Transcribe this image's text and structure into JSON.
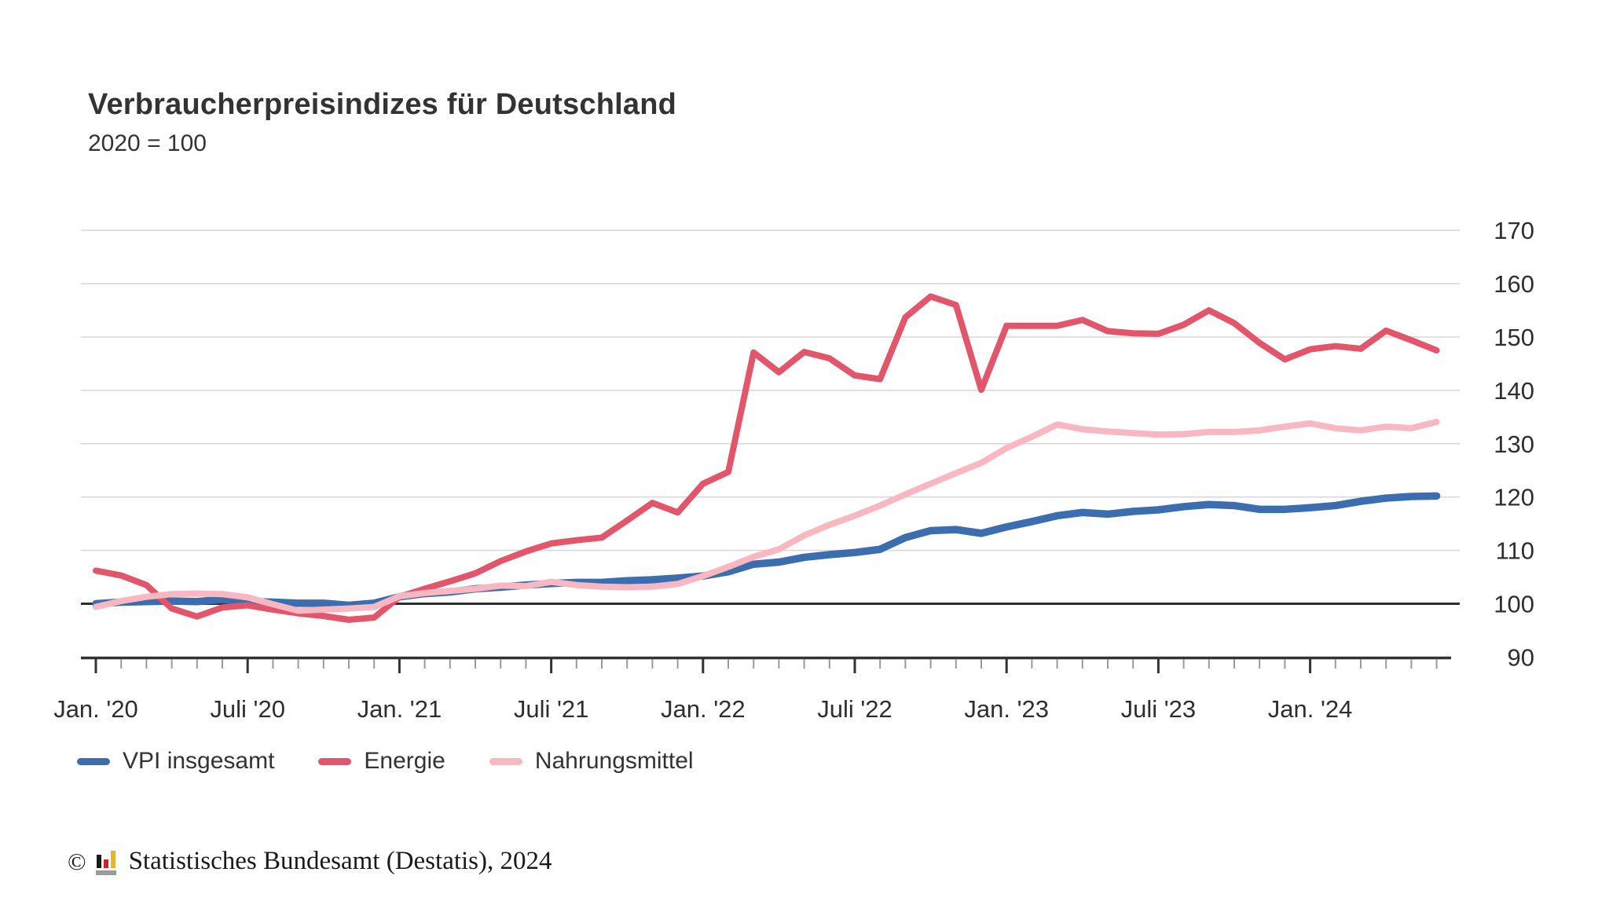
{
  "header": {
    "title": "Verbraucherpreisindizes für Deutschland",
    "subtitle": "2020 = 100"
  },
  "chart_data": {
    "type": "line",
    "title": "Verbraucherpreisindizes für Deutschland",
    "subtitle": "2020 = 100",
    "grid": true,
    "legend_position": "bottom",
    "ylim": [
      90,
      170
    ],
    "y_ticks": [
      90,
      100,
      110,
      120,
      130,
      140,
      150,
      160,
      170
    ],
    "baseline_value": 100,
    "x_tick_labels": [
      "Jan. '20",
      "Juli '20",
      "Jan. '21",
      "Juli '21",
      "Jan. '22",
      "Juli '22",
      "Jan. '23",
      "Juli '23",
      "Jan. '24"
    ],
    "x": [
      "Jan. '20",
      "Feb. '20",
      "März '20",
      "Apr. '20",
      "Mai '20",
      "Juni '20",
      "Juli '20",
      "Aug. '20",
      "Sep. '20",
      "Okt. '20",
      "Nov. '20",
      "Dez. '20",
      "Jan. '21",
      "Feb. '21",
      "März '21",
      "Apr. '21",
      "Mai '21",
      "Juni '21",
      "Juli '21",
      "Aug. '21",
      "Sep. '21",
      "Okt. '21",
      "Nov. '21",
      "Dez. '21",
      "Jan. '22",
      "Feb. '22",
      "März '22",
      "Apr. '22",
      "Mai '22",
      "Juni '22",
      "Juli '22",
      "Aug. '22",
      "Sep. '22",
      "Okt. '22",
      "Nov. '22",
      "Dez. '22",
      "Jan. '23",
      "Feb. '23",
      "März '23",
      "Apr. '23",
      "Mai '23",
      "Juni '23",
      "Juli '23",
      "Aug. '23",
      "Sep. '23",
      "Okt. '23",
      "Nov. '23",
      "Dez. '23",
      "Jan. '24",
      "Feb. '24",
      "März '24",
      "Apr. '24",
      "Mai '24",
      "Juni '24"
    ],
    "series": [
      {
        "name": "VPI insgesamt",
        "color": "#3C6EAF",
        "values": [
          100.0,
          100.3,
          100.4,
          100.5,
          100.4,
          100.8,
          100.4,
          100.3,
          100.1,
          100.1,
          99.7,
          100.1,
          101.3,
          101.9,
          102.2,
          102.8,
          103.1,
          103.5,
          103.8,
          104.0,
          104.0,
          104.3,
          104.5,
          104.8,
          105.2,
          106.0,
          107.4,
          107.8,
          108.7,
          109.2,
          109.6,
          110.2,
          112.4,
          113.7,
          113.9,
          113.2,
          114.4,
          115.4,
          116.5,
          117.1,
          116.8,
          117.3,
          117.6,
          118.2,
          118.6,
          118.4,
          117.7,
          117.7,
          118.0,
          118.4,
          119.2,
          119.8,
          120.1,
          120.2
        ]
      },
      {
        "name": "Energie",
        "color": "#E2566B",
        "values": [
          106.2,
          105.3,
          103.5,
          99.1,
          97.6,
          99.3,
          99.7,
          98.9,
          98.2,
          97.7,
          97.0,
          97.4,
          101.3,
          102.8,
          104.2,
          105.7,
          108.0,
          109.8,
          111.3,
          111.9,
          112.4,
          115.6,
          118.9,
          117.1,
          122.5,
          124.7,
          147.1,
          143.4,
          147.2,
          146.0,
          142.8,
          142.1,
          153.7,
          157.6,
          156.0,
          140.1,
          152.1,
          152.1,
          152.1,
          153.2,
          151.1,
          150.7,
          150.6,
          152.3,
          155.0,
          152.6,
          148.9,
          145.8,
          147.7,
          148.3,
          147.8,
          151.2,
          149.4,
          147.5
        ]
      },
      {
        "name": "Nahrungsmittel",
        "color": "#F8B7C1",
        "values": [
          99.4,
          100.5,
          101.3,
          101.8,
          101.9,
          101.8,
          101.2,
          99.9,
          98.7,
          98.9,
          99.1,
          99.4,
          101.4,
          102.0,
          102.4,
          102.8,
          103.4,
          103.3,
          104.1,
          103.5,
          103.2,
          103.1,
          103.2,
          103.7,
          105.2,
          106.9,
          108.8,
          110.2,
          112.8,
          114.8,
          116.5,
          118.4,
          120.5,
          122.5,
          124.5,
          126.4,
          129.2,
          131.3,
          133.6,
          132.7,
          132.3,
          132.0,
          131.7,
          131.8,
          132.2,
          132.2,
          132.5,
          133.2,
          133.8,
          132.9,
          132.5,
          133.2,
          132.9,
          134.1
        ]
      }
    ]
  },
  "footer": {
    "copyright": "©",
    "text": "Statistisches Bundesamt (Destatis), 2024"
  },
  "colors": {
    "gridline": "#d9d9d9",
    "baseline": "#2d2d2d",
    "axis": "#333333",
    "minor_tick": "#9a9a9a",
    "text": "#2e2e2e"
  }
}
